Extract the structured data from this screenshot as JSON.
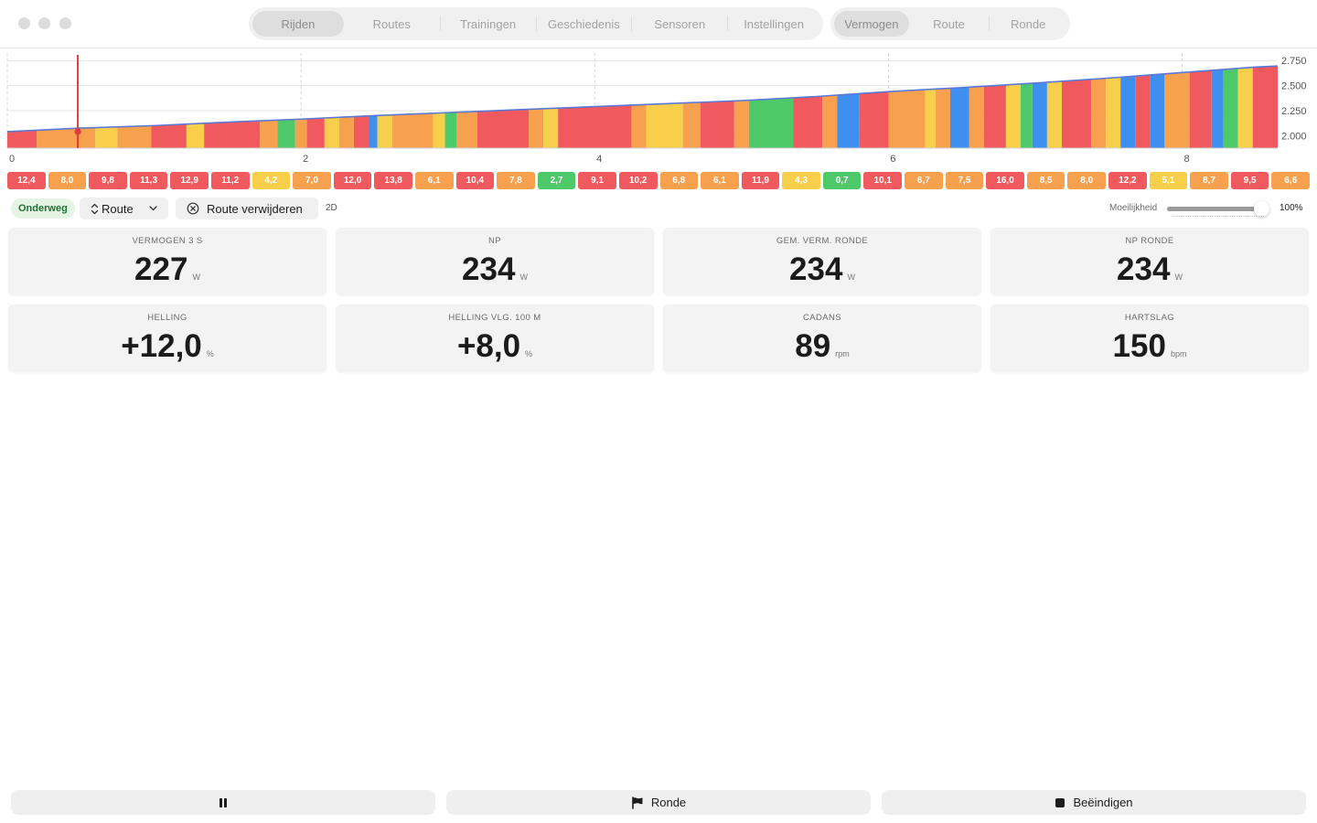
{
  "window": {
    "controls": [
      "close-button",
      "minimize-button",
      "zoom-button"
    ]
  },
  "nav": {
    "main_tabs": [
      {
        "label": "Rijden",
        "active": true
      },
      {
        "label": "Routes",
        "active": false
      },
      {
        "label": "Trainingen",
        "active": false
      },
      {
        "label": "Geschiedenis",
        "active": false
      },
      {
        "label": "Sensoren",
        "active": false
      },
      {
        "label": "Instellingen",
        "active": false
      }
    ],
    "view_tabs": [
      {
        "label": "Vermogen",
        "active": true
      },
      {
        "label": "Route",
        "active": false
      },
      {
        "label": "Ronde",
        "active": false
      }
    ]
  },
  "colors": {
    "red": "#f0595d",
    "orange": "#f7a14f",
    "yellow": "#f8cf4a",
    "green": "#4ec96a",
    "blue": "#3e8ff0",
    "line": "#5b78d6",
    "marker": "#e23b3b"
  },
  "chart_data": {
    "type": "area",
    "xlim": [
      0,
      8.65
    ],
    "ylim": [
      1875,
      2825
    ],
    "x_ticks": [
      "0",
      "2",
      "4",
      "6",
      "8"
    ],
    "x_tick_values": [
      0,
      2,
      4,
      6,
      8
    ],
    "y_ticks": [
      "2.750",
      "2.500",
      "2.250",
      "2.000"
    ],
    "y_tick_values": [
      2750,
      2500,
      2250,
      2000
    ],
    "grid": true,
    "elevation": {
      "x": [
        0,
        0.5,
        1,
        1.5,
        2,
        2.5,
        3,
        3.5,
        4,
        4.5,
        5,
        5.5,
        6,
        6.5,
        7,
        7.5,
        8,
        8.5,
        8.65
      ],
      "y": [
        2040,
        2075,
        2100,
        2135,
        2165,
        2200,
        2230,
        2260,
        2290,
        2320,
        2350,
        2390,
        2440,
        2480,
        2525,
        2575,
        2630,
        2685,
        2695
      ]
    },
    "zone_bands": [
      {
        "from": 0,
        "to": 0.2,
        "zone": "red"
      },
      {
        "from": 0.2,
        "to": 0.6,
        "zone": "orange"
      },
      {
        "from": 0.6,
        "to": 0.75,
        "zone": "yellow"
      },
      {
        "from": 0.75,
        "to": 0.98,
        "zone": "orange"
      },
      {
        "from": 0.98,
        "to": 1.22,
        "zone": "red"
      },
      {
        "from": 1.22,
        "to": 1.34,
        "zone": "yellow"
      },
      {
        "from": 1.34,
        "to": 1.72,
        "zone": "red"
      },
      {
        "from": 1.72,
        "to": 1.84,
        "zone": "orange"
      },
      {
        "from": 1.84,
        "to": 1.96,
        "zone": "green"
      },
      {
        "from": 1.96,
        "to": 2.04,
        "zone": "orange"
      },
      {
        "from": 2.04,
        "to": 2.16,
        "zone": "red"
      },
      {
        "from": 2.16,
        "to": 2.26,
        "zone": "yellow"
      },
      {
        "from": 2.26,
        "to": 2.36,
        "zone": "orange"
      },
      {
        "from": 2.36,
        "to": 2.46,
        "zone": "red"
      },
      {
        "from": 2.46,
        "to": 2.52,
        "zone": "blue"
      },
      {
        "from": 2.52,
        "to": 2.62,
        "zone": "yellow"
      },
      {
        "from": 2.62,
        "to": 2.9,
        "zone": "orange"
      },
      {
        "from": 2.9,
        "to": 2.98,
        "zone": "yellow"
      },
      {
        "from": 2.98,
        "to": 3.06,
        "zone": "green"
      },
      {
        "from": 3.06,
        "to": 3.2,
        "zone": "orange"
      },
      {
        "from": 3.2,
        "to": 3.55,
        "zone": "red"
      },
      {
        "from": 3.55,
        "to": 3.65,
        "zone": "orange"
      },
      {
        "from": 3.65,
        "to": 3.75,
        "zone": "yellow"
      },
      {
        "from": 3.75,
        "to": 4.25,
        "zone": "red"
      },
      {
        "from": 4.25,
        "to": 4.35,
        "zone": "orange"
      },
      {
        "from": 4.35,
        "to": 4.6,
        "zone": "yellow"
      },
      {
        "from": 4.6,
        "to": 4.72,
        "zone": "orange"
      },
      {
        "from": 4.72,
        "to": 4.95,
        "zone": "red"
      },
      {
        "from": 4.95,
        "to": 5.05,
        "zone": "orange"
      },
      {
        "from": 5.05,
        "to": 5.35,
        "zone": "green"
      },
      {
        "from": 5.35,
        "to": 5.55,
        "zone": "red"
      },
      {
        "from": 5.55,
        "to": 5.65,
        "zone": "orange"
      },
      {
        "from": 5.65,
        "to": 5.8,
        "zone": "blue"
      },
      {
        "from": 5.8,
        "to": 6.0,
        "zone": "red"
      },
      {
        "from": 6.0,
        "to": 6.25,
        "zone": "orange"
      },
      {
        "from": 6.25,
        "to": 6.32,
        "zone": "yellow"
      },
      {
        "from": 6.32,
        "to": 6.42,
        "zone": "orange"
      },
      {
        "from": 6.42,
        "to": 6.55,
        "zone": "blue"
      },
      {
        "from": 6.55,
        "to": 6.65,
        "zone": "orange"
      },
      {
        "from": 6.65,
        "to": 6.8,
        "zone": "red"
      },
      {
        "from": 6.8,
        "to": 6.9,
        "zone": "yellow"
      },
      {
        "from": 6.9,
        "to": 6.98,
        "zone": "green"
      },
      {
        "from": 6.98,
        "to": 7.08,
        "zone": "blue"
      },
      {
        "from": 7.08,
        "to": 7.18,
        "zone": "yellow"
      },
      {
        "from": 7.18,
        "to": 7.38,
        "zone": "red"
      },
      {
        "from": 7.38,
        "to": 7.48,
        "zone": "orange"
      },
      {
        "from": 7.48,
        "to": 7.58,
        "zone": "yellow"
      },
      {
        "from": 7.58,
        "to": 7.68,
        "zone": "blue"
      },
      {
        "from": 7.68,
        "to": 7.78,
        "zone": "red"
      },
      {
        "from": 7.78,
        "to": 7.88,
        "zone": "blue"
      },
      {
        "from": 7.88,
        "to": 8.05,
        "zone": "orange"
      },
      {
        "from": 8.05,
        "to": 8.2,
        "zone": "red"
      },
      {
        "from": 8.2,
        "to": 8.28,
        "zone": "blue"
      },
      {
        "from": 8.28,
        "to": 8.38,
        "zone": "green"
      },
      {
        "from": 8.38,
        "to": 8.48,
        "zone": "yellow"
      },
      {
        "from": 8.48,
        "to": 8.65,
        "zone": "red"
      }
    ],
    "position_marker": {
      "x": 0.48,
      "y": 2040
    },
    "segments": [
      {
        "label": "12,4",
        "zone": "red"
      },
      {
        "label": "8,0",
        "zone": "orange"
      },
      {
        "label": "9,8",
        "zone": "red"
      },
      {
        "label": "11,3",
        "zone": "red"
      },
      {
        "label": "12,9",
        "zone": "red"
      },
      {
        "label": "11,2",
        "zone": "red"
      },
      {
        "label": "4,2",
        "zone": "yellow"
      },
      {
        "label": "7,0",
        "zone": "orange"
      },
      {
        "label": "12,0",
        "zone": "red"
      },
      {
        "label": "13,8",
        "zone": "red"
      },
      {
        "label": "6,1",
        "zone": "orange"
      },
      {
        "label": "10,4",
        "zone": "red"
      },
      {
        "label": "7,8",
        "zone": "orange"
      },
      {
        "label": "2,7",
        "zone": "green"
      },
      {
        "label": "9,1",
        "zone": "red"
      },
      {
        "label": "10,2",
        "zone": "red"
      },
      {
        "label": "6,8",
        "zone": "orange"
      },
      {
        "label": "6,1",
        "zone": "orange"
      },
      {
        "label": "11,9",
        "zone": "red"
      },
      {
        "label": "4,3",
        "zone": "yellow"
      },
      {
        "label": "0,7",
        "zone": "green"
      },
      {
        "label": "10,1",
        "zone": "red"
      },
      {
        "label": "6,7",
        "zone": "orange"
      },
      {
        "label": "7,5",
        "zone": "orange"
      },
      {
        "label": "16,0",
        "zone": "red"
      },
      {
        "label": "8,5",
        "zone": "orange"
      },
      {
        "label": "8,0",
        "zone": "orange"
      },
      {
        "label": "12,2",
        "zone": "red"
      },
      {
        "label": "5,1",
        "zone": "yellow"
      },
      {
        "label": "8,7",
        "zone": "orange"
      },
      {
        "label": "9,5",
        "zone": "red"
      },
      {
        "label": "6,6",
        "zone": "orange"
      }
    ]
  },
  "toolbar": {
    "status_badge": "Onderweg",
    "route_select": "Route",
    "remove_route": "Route verwijderen",
    "view_mode": "2D",
    "difficulty_label": "Moeilijkheid",
    "difficulty_value": "100%",
    "difficulty_level": 1.0
  },
  "metrics": [
    {
      "label": "VERMOGEN 3 S",
      "value": "227",
      "unit": "W"
    },
    {
      "label": "NP",
      "value": "234",
      "unit": "W"
    },
    {
      "label": "GEM. VERM. RONDE",
      "value": "234",
      "unit": "W"
    },
    {
      "label": "NP RONDE",
      "value": "234",
      "unit": "W"
    },
    {
      "label": "HELLING",
      "value": "+12,0",
      "unit": "%"
    },
    {
      "label": "HELLING VLG. 100 M",
      "value": "+8,0",
      "unit": "%"
    },
    {
      "label": "CADANS",
      "value": "89",
      "unit": "rpm"
    },
    {
      "label": "HARTSLAG",
      "value": "150",
      "unit": "bpm"
    }
  ],
  "actions": {
    "pause": "",
    "lap": "Ronde",
    "finish": "Beëindigen"
  },
  "icons": {
    "pause": "pause-icon",
    "lap": "flag-icon",
    "finish": "stop-icon",
    "remove": "circle-x-icon",
    "select": "updown-chevron-icon"
  }
}
